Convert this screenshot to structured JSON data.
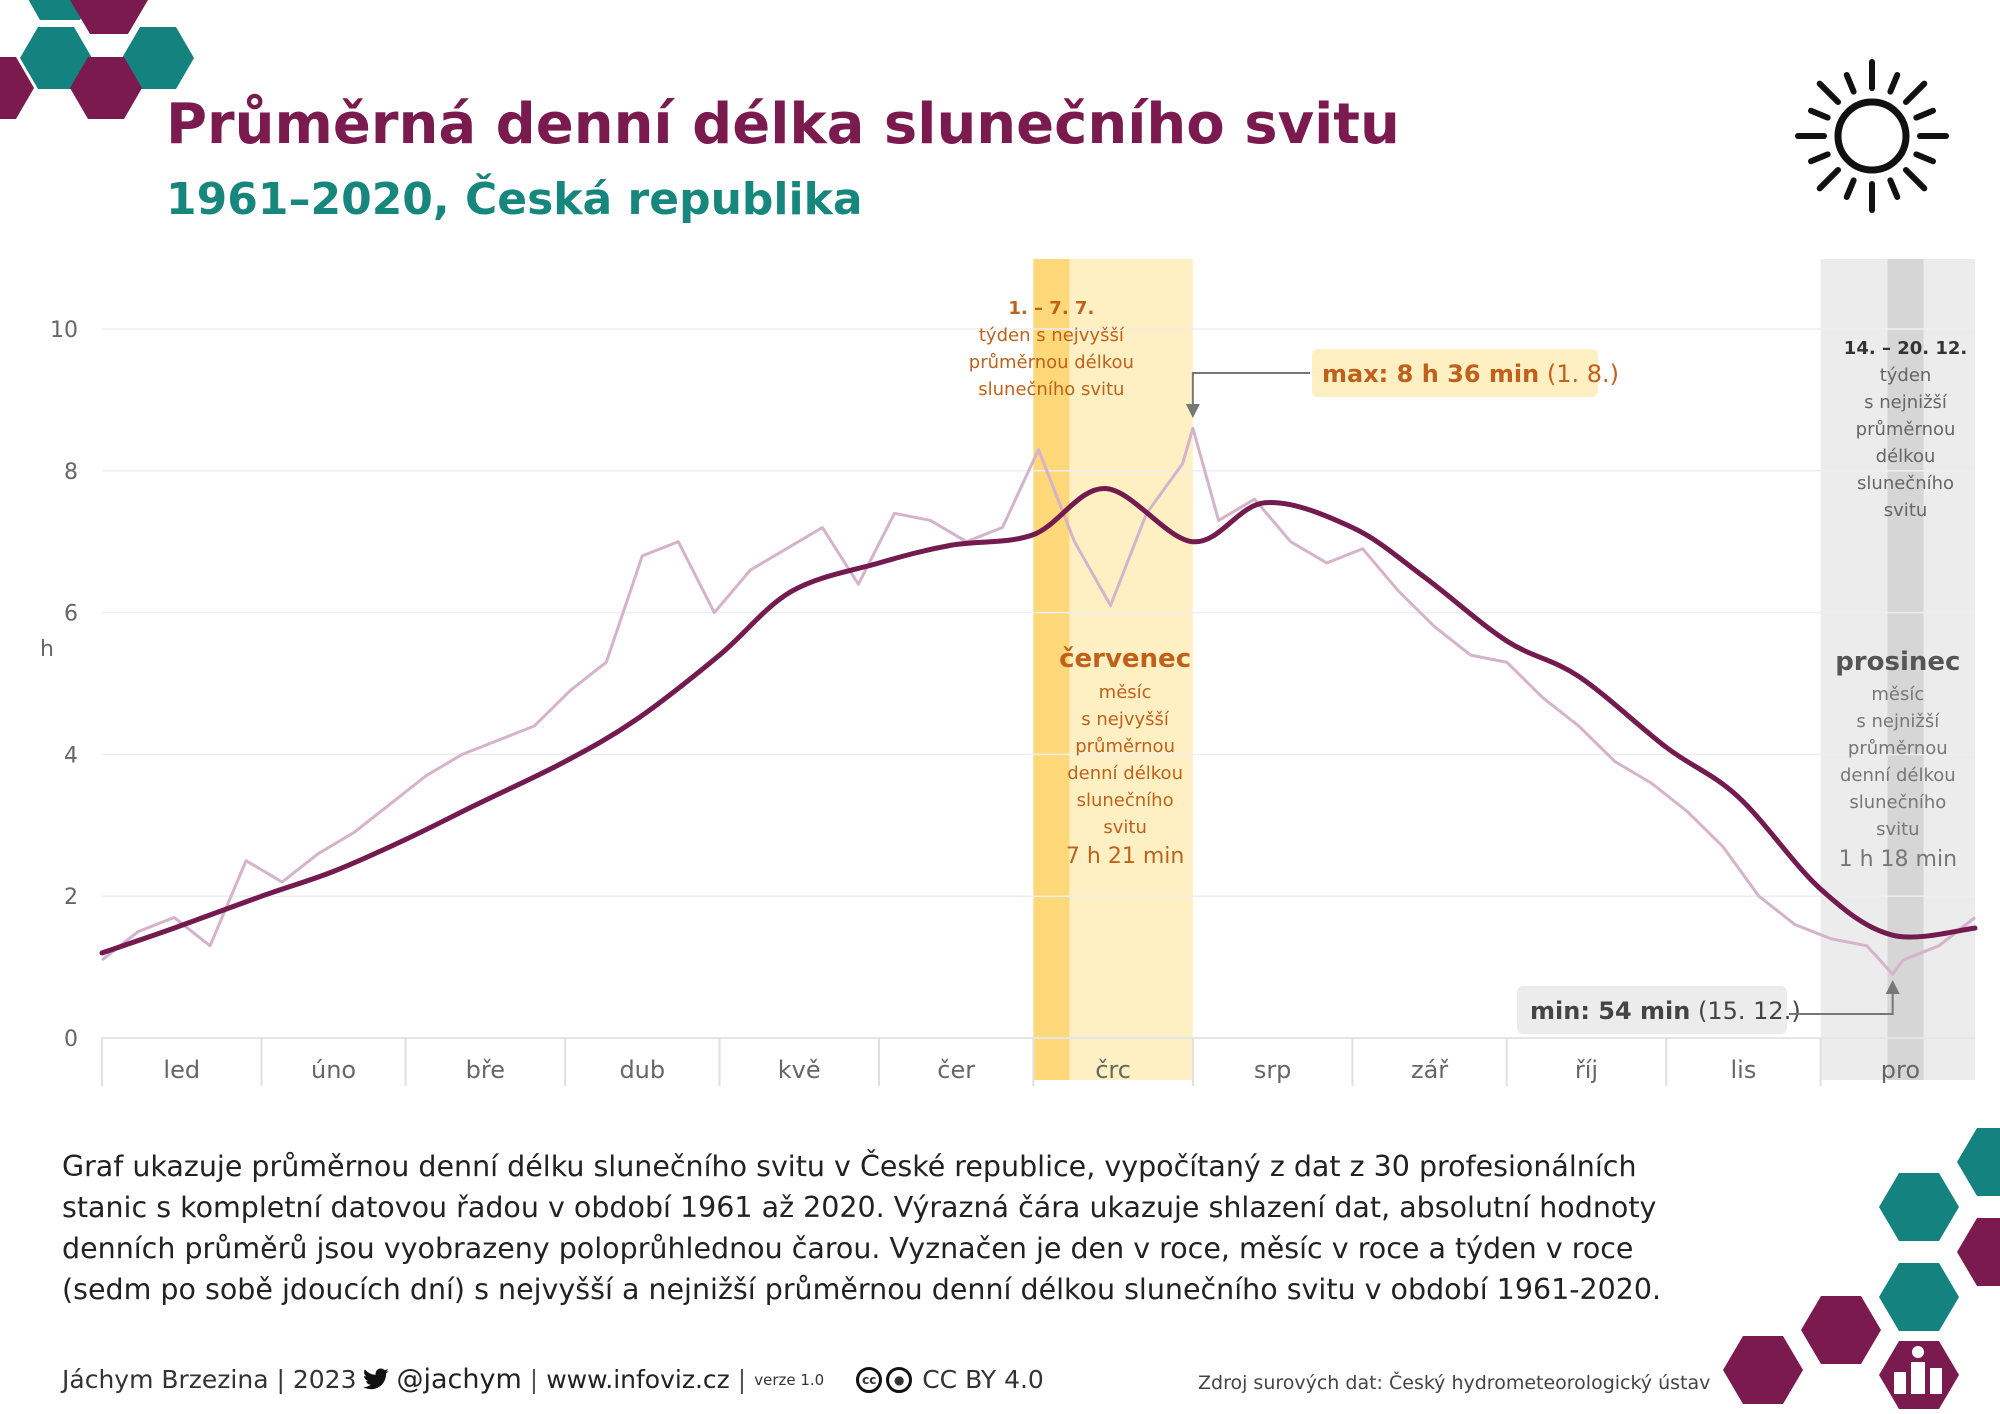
{
  "title": "Průměrná denní délka slunečního svitu",
  "subtitle": "1961–2020, Česká republika",
  "description": "Graf ukazuje průměrnou denní délku slunečního svitu v České republice, vypočítaný z dat z 30 profesionálních stanic s kompletní datovou řadou v období 1961 až 2020. Výrazná čára ukazuje shlazení dat, absolutní hodnoty denních průměrů jsou vyobrazeny poloprůhlednou čarou. Vyznačen je den v roce, měsíc v roce a týden v roce (sedm po sobě jdoucích dní) s nejvyšší a nejnižší průměrnou denní délkou slunečního svitu v období 1961-2020.",
  "footer": {
    "author": "Jáchym Brzezina | 2023",
    "twitter": "@jachym",
    "website": "www.infoviz.cz",
    "version": "verze 1.0",
    "license": "CC BY 4.0",
    "source": "Zdroj surových dat: Český hydrometeorologický ústav"
  },
  "colors": {
    "title": "#7a1a4e",
    "subtitle": "#17867d",
    "smooth_line": "#731a4f",
    "daily_line": "#d5b3cb",
    "summer_band": "#fff0c4",
    "summer_week": "#ffd87a",
    "winter_band": "#ececec",
    "winter_week": "#d6d6d6",
    "max_text": "#c0611b",
    "hex_teal": "#148380",
    "hex_purple": "#7a1a4e"
  },
  "icons": [
    "sun-icon",
    "twitter-bird-icon",
    "cc-icon",
    "by-icon",
    "infoviz-logo-icon"
  ],
  "chart_data": {
    "type": "line",
    "ylabel": "h",
    "ylim": [
      0,
      10
    ],
    "yticks": [
      "0",
      "2",
      "4",
      "6",
      "8",
      "10"
    ],
    "categories": [
      "led",
      "úno",
      "bře",
      "dub",
      "kvě",
      "čer",
      "črc",
      "srp",
      "zář",
      "říj",
      "lis",
      "pro"
    ],
    "grid": true,
    "series": [
      {
        "role": "smoothed",
        "day": [
          1,
          15,
          32,
          46,
          60,
          74,
          91,
          105,
          121,
          135,
          152,
          166,
          182,
          196,
          213,
          227,
          244,
          258,
          274,
          288,
          305,
          319,
          335,
          349,
          365
        ],
        "hours": [
          1.2,
          1.55,
          2.0,
          2.35,
          2.8,
          3.3,
          3.9,
          4.5,
          5.4,
          6.3,
          6.7,
          6.95,
          7.1,
          7.75,
          7.0,
          7.55,
          7.2,
          6.5,
          5.6,
          5.1,
          4.1,
          3.4,
          2.1,
          1.45,
          1.55
        ]
      },
      {
        "role": "daily",
        "day": [
          1,
          8,
          15,
          22,
          29,
          36,
          43,
          50,
          57,
          64,
          71,
          78,
          85,
          92,
          99,
          106,
          113,
          120,
          127,
          134,
          141,
          148,
          155,
          162,
          169,
          176,
          183,
          190,
          197,
          204,
          211,
          213,
          218,
          225,
          232,
          239,
          246,
          253,
          260,
          267,
          274,
          281,
          288,
          295,
          302,
          309,
          316,
          323,
          330,
          337,
          344,
          349,
          351,
          358,
          365
        ],
        "hours": [
          1.1,
          1.5,
          1.7,
          1.3,
          2.5,
          2.2,
          2.6,
          2.9,
          3.3,
          3.7,
          4.0,
          4.2,
          4.4,
          4.9,
          5.3,
          6.8,
          7.0,
          6.0,
          6.6,
          6.9,
          7.2,
          6.4,
          7.4,
          7.3,
          7.0,
          7.2,
          8.3,
          7.0,
          6.1,
          7.4,
          8.1,
          8.6,
          7.3,
          7.6,
          7.0,
          6.7,
          6.9,
          6.3,
          5.8,
          5.4,
          5.3,
          4.8,
          4.4,
          3.9,
          3.6,
          3.2,
          2.7,
          2.0,
          1.6,
          1.4,
          1.3,
          0.9,
          1.1,
          1.3,
          1.7
        ]
      }
    ],
    "highlights": {
      "summer_month": {
        "name": "červenec",
        "text": [
          "měsíc",
          "s nejvyšší",
          "průměrnou",
          "denní délkou",
          "slunečního",
          "svitu"
        ],
        "value": "7 h 21 min"
      },
      "summer_week": {
        "dates": "1. – 7. 7.",
        "text": [
          "týden s nejvyšší",
          "průměrnou délkou",
          "slunečního svitu"
        ]
      },
      "winter_month": {
        "name": "prosinec",
        "text": [
          "měsíc",
          "s nejnižší",
          "průměrnou",
          "denní délkou",
          "slunečního",
          "svitu"
        ],
        "value": "1 h 18 min"
      },
      "winter_week": {
        "dates": "14. – 20. 12.",
        "text": [
          "týden",
          "s nejnižší",
          "průměrnou",
          "délkou",
          "slunečního",
          "svitu"
        ]
      },
      "max": {
        "label": "max: 8 h 36 min",
        "date": "(1. 8.)",
        "day": 213,
        "hours": 8.6
      },
      "min": {
        "label": "min: 54 min",
        "date": "(15. 12.)",
        "day": 349,
        "hours": 0.9
      }
    }
  }
}
